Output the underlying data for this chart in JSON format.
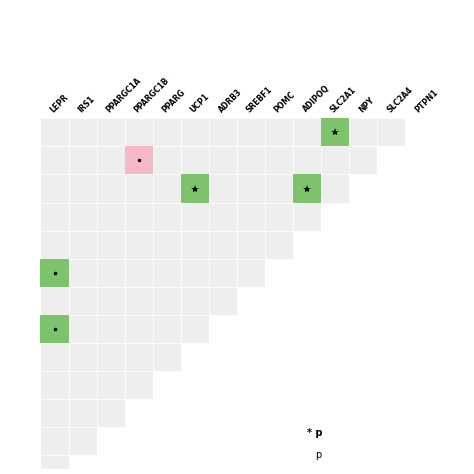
{
  "genes": [
    "LEPR",
    "IRS1",
    "PPARGC1A",
    "PPARGC1B",
    "PPARG",
    "UCP1",
    "ADRB3",
    "SREBF1",
    "POMC",
    "ADIPOQ",
    "SLC2A1",
    "NPY",
    "SLC2A4",
    "PTPN1"
  ],
  "n": 14,
  "cell_bg": "#eeeeee",
  "green_strong": "#7dc36b",
  "pink": "#f4b8c8",
  "highlights": [
    {
      "row": 0,
      "col": 10,
      "color": "#7dc36b",
      "marker": "*"
    },
    {
      "row": 1,
      "col": 3,
      "color": "#f4b8c8",
      "marker": "."
    },
    {
      "row": 2,
      "col": 5,
      "color": "#7dc36b",
      "marker": "*"
    },
    {
      "row": 2,
      "col": 9,
      "color": "#7dc36b",
      "marker": "*"
    },
    {
      "row": 5,
      "col": 0,
      "color": "#7dc36b",
      "marker": "."
    },
    {
      "row": 7,
      "col": 0,
      "color": "#7dc36b",
      "marker": "."
    }
  ],
  "legend_star": "* p",
  "legend_p": "p",
  "fig_width": 4.74,
  "fig_height": 4.74,
  "dpi": 100
}
